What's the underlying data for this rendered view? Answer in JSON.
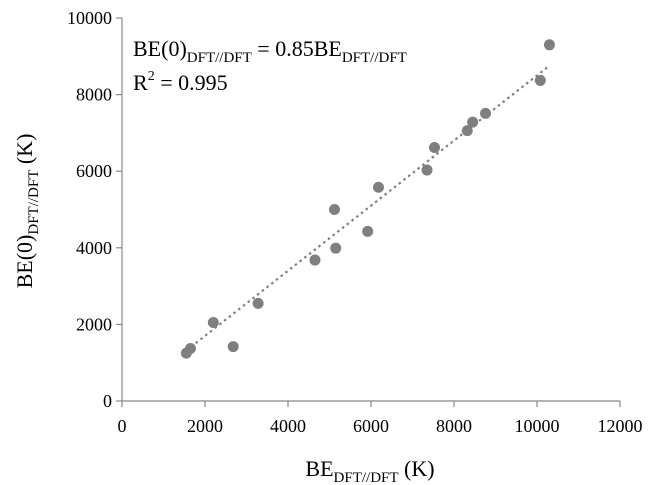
{
  "chart_data": {
    "type": "scatter",
    "xlim": [
      0,
      12000
    ],
    "ylim": [
      0,
      10000
    ],
    "x_ticks": [
      0,
      2000,
      4000,
      6000,
      8000,
      10000,
      12000
    ],
    "y_ticks": [
      0,
      2000,
      4000,
      6000,
      8000,
      10000
    ],
    "x_tick_labels": [
      "0",
      "2000",
      "4000",
      "6000",
      "8000",
      "10000",
      "12000"
    ],
    "y_tick_labels": [
      "0",
      "2000",
      "4000",
      "6000",
      "8000",
      "10000"
    ],
    "xlabel": {
      "base": "BE",
      "sub": "DFT//DFT",
      "suffix": " (K)"
    },
    "ylabel": {
      "base": "BE(0)",
      "sub": "DFT//DFT",
      "suffix": " (K)"
    },
    "grid": false,
    "annotation": {
      "equation": {
        "lhs_base": "BE(0)",
        "lhs_sub": "DFT//DFT",
        "middle": " = 0.85BE",
        "rhs_sub": "DFT//DFT"
      },
      "r2": {
        "base": "R",
        "sup": "2",
        "rest": " = 0.995"
      }
    },
    "trendline": {
      "slope": 0.85,
      "intercept": 0,
      "x_range": [
        1550,
        10300
      ],
      "style": "dotted",
      "color": "#808080"
    },
    "marker_color": "#7f7f7f",
    "points": [
      {
        "x": 1550,
        "y": 1250
      },
      {
        "x": 1650,
        "y": 1370
      },
      {
        "x": 2200,
        "y": 2050
      },
      {
        "x": 2680,
        "y": 1420
      },
      {
        "x": 3280,
        "y": 2550
      },
      {
        "x": 4650,
        "y": 3680
      },
      {
        "x": 5120,
        "y": 5000
      },
      {
        "x": 5150,
        "y": 3990
      },
      {
        "x": 5920,
        "y": 4430
      },
      {
        "x": 6180,
        "y": 5580
      },
      {
        "x": 7350,
        "y": 6030
      },
      {
        "x": 7530,
        "y": 6620
      },
      {
        "x": 8320,
        "y": 7060
      },
      {
        "x": 8450,
        "y": 7280
      },
      {
        "x": 8760,
        "y": 7510
      },
      {
        "x": 10080,
        "y": 8370
      },
      {
        "x": 10300,
        "y": 9300
      }
    ]
  }
}
